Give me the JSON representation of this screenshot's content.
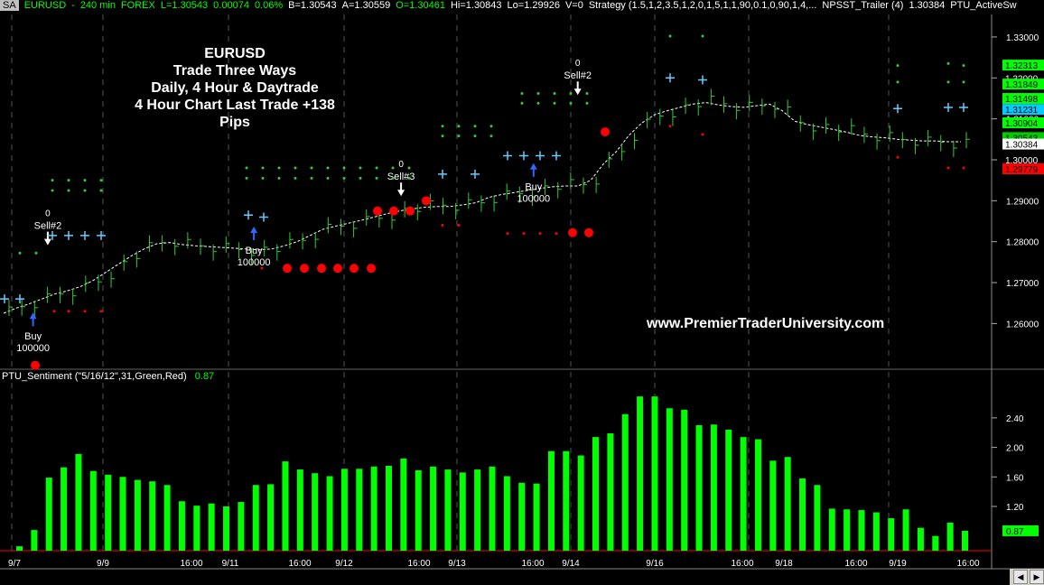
{
  "header": {
    "sa_label": "SA",
    "symbol": "EURUSD",
    "interval": "240 min",
    "market": "FOREX",
    "last": "L=1.30543",
    "change": "0.00074",
    "change_pct": "0.06%",
    "bid": "B=1.30543",
    "ask": "A=1.30559",
    "open": "O=1.30461",
    "high": "Hi=1.30843",
    "low": "Lo=1.29926",
    "volume": "V=0",
    "strategy": "Strategy (1.5,1,2,3.5,1,2,0,1,5,1,1,90,0.1,0,90,1,4,...",
    "trailer": "NPSST_Trailer (4)",
    "trailer_value": "1.30384",
    "active_swing": "PTU_ActiveSw"
  },
  "sentiment_header": {
    "label": "PTU_Sentiment (\"5/16/12\",31,Green,Red)",
    "value": "0.87"
  },
  "overlay": {
    "title_lines": [
      "EURUSD",
      "Trade Three Ways",
      "Daily, 4 Hour & Daytrade",
      "4 Hour Chart Last Trade +138 Pips"
    ],
    "url": "www.PremierTraderUniversity.com"
  },
  "colors": {
    "background": "#000000",
    "up": "#33cc33",
    "bar": "#00ff00",
    "stop": "#ff0000",
    "plus": "#66ccff",
    "trail": "#ffffff",
    "arrow_buy": "#3366ff",
    "grid": "#555555"
  },
  "chart_data": [
    {
      "type": "line",
      "title": "EURUSD 240 min",
      "ylim": [
        1.2495,
        1.3355
      ],
      "y_ticks": [
        "1.33000",
        "1.32000",
        "1.31000",
        "1.30000",
        "1.29000",
        "1.28000",
        "1.27000",
        "1.26000"
      ],
      "price_labels": [
        {
          "text": "1.32313",
          "bg": "#00ff00",
          "fg": "#000000",
          "value": 1.32313
        },
        {
          "text": "1.32000",
          "bg": "#000000",
          "fg": "#ffffff",
          "value": 1.32
        },
        {
          "text": "1.31849",
          "bg": "#00ff00",
          "fg": "#000000",
          "value": 1.31849
        },
        {
          "text": "1.31498",
          "bg": "#00ff00",
          "fg": "#000000",
          "value": 1.31498
        },
        {
          "text": "1.31231",
          "bg": "#00ccff",
          "fg": "#000000",
          "value": 1.31231
        },
        {
          "text": "1.30904",
          "bg": "#00ff00",
          "fg": "#000000",
          "value": 1.30904
        },
        {
          "text": "1.30543",
          "bg": "#00cc00",
          "fg": "#000000",
          "value": 1.30543
        },
        {
          "text": "1.30384",
          "bg": "#ffffff",
          "fg": "#000000",
          "value": 1.30384
        },
        {
          "text": "1.30000",
          "bg": "#000000",
          "fg": "#ffffff",
          "value": 1.3
        },
        {
          "text": "1.29779",
          "bg": "#ff0000",
          "fg": "#000000",
          "value": 1.29779
        }
      ],
      "x_labels": [
        "9/7",
        "9/9",
        "16:00",
        "9/11",
        "16:00",
        "9/12",
        "16:00",
        "9/13",
        "16:00",
        "9/14",
        "9/16",
        "16:00",
        "9/18",
        "16:00",
        "9/19",
        "16:00"
      ],
      "trail": [
        1.2625,
        1.2638,
        1.2648,
        1.266,
        1.2672,
        1.268,
        1.269,
        1.2705,
        1.2725,
        1.2745,
        1.2765,
        1.2782,
        1.2795,
        1.2798,
        1.2793,
        1.279,
        1.2788,
        1.2786,
        1.2784,
        1.2782,
        1.278,
        1.2782,
        1.279,
        1.28,
        1.2815,
        1.283,
        1.2838,
        1.2845,
        1.2852,
        1.286,
        1.2868,
        1.2875,
        1.288,
        1.2884,
        1.2886,
        1.2886,
        1.289,
        1.2895,
        1.2908,
        1.2915,
        1.292,
        1.2925,
        1.293,
        1.2934,
        1.2936,
        1.2936,
        1.295,
        1.299,
        1.302,
        1.306,
        1.309,
        1.311,
        1.312,
        1.3128,
        1.3136,
        1.314,
        1.3134,
        1.313,
        1.3128,
        1.3132,
        1.3136,
        1.312,
        1.3094,
        1.3086,
        1.308,
        1.3074,
        1.3068,
        1.306,
        1.3056,
        1.3054,
        1.305,
        1.3048,
        1.3046,
        1.3046,
        1.3044,
        1.3044
      ],
      "markers": [
        {
          "label": "Buy",
          "qty": "100000",
          "kind": "buy",
          "bar": 2,
          "price": 1.264
        },
        {
          "label": "Sell#2",
          "qty": "0",
          "kind": "sell",
          "bar": 3,
          "price": 1.2778
        },
        {
          "label": "Buy",
          "qty": "100000",
          "kind": "buy",
          "bar": 17,
          "price": 1.285
        },
        {
          "label": "Sell#3",
          "qty": "0",
          "kind": "sell",
          "bar": 27,
          "price": 1.2898
        },
        {
          "label": "Buy",
          "qty": "100000",
          "kind": "buy",
          "bar": 36,
          "price": 1.3005
        },
        {
          "label": "Sell#2",
          "qty": "0",
          "kind": "sell",
          "bar": 39,
          "price": 1.3145
        }
      ]
    },
    {
      "type": "bar",
      "title": "PTU_Sentiment",
      "ylim": [
        0.6,
        2.9
      ],
      "y_ticks": [
        "2.40",
        "2.00",
        "1.60",
        "1.20"
      ],
      "last_label": "0.87",
      "values": [
        0.66,
        0.88,
        1.59,
        1.73,
        1.91,
        1.68,
        1.63,
        1.6,
        1.56,
        1.54,
        1.49,
        1.27,
        1.21,
        1.24,
        1.2,
        1.26,
        1.49,
        1.5,
        1.81,
        1.7,
        1.65,
        1.61,
        1.71,
        1.71,
        1.74,
        1.75,
        1.85,
        1.69,
        1.74,
        1.7,
        1.66,
        1.7,
        1.74,
        1.61,
        1.52,
        1.51,
        1.95,
        1.95,
        1.89,
        2.14,
        2.19,
        2.45,
        2.69,
        2.69,
        2.53,
        2.51,
        2.3,
        2.31,
        2.24,
        2.14,
        2.11,
        1.82,
        1.87,
        1.58,
        1.49,
        1.17,
        1.16,
        1.15,
        1.12,
        1.04,
        1.16,
        0.91,
        0.8,
        0.98,
        0.87
      ]
    }
  ]
}
